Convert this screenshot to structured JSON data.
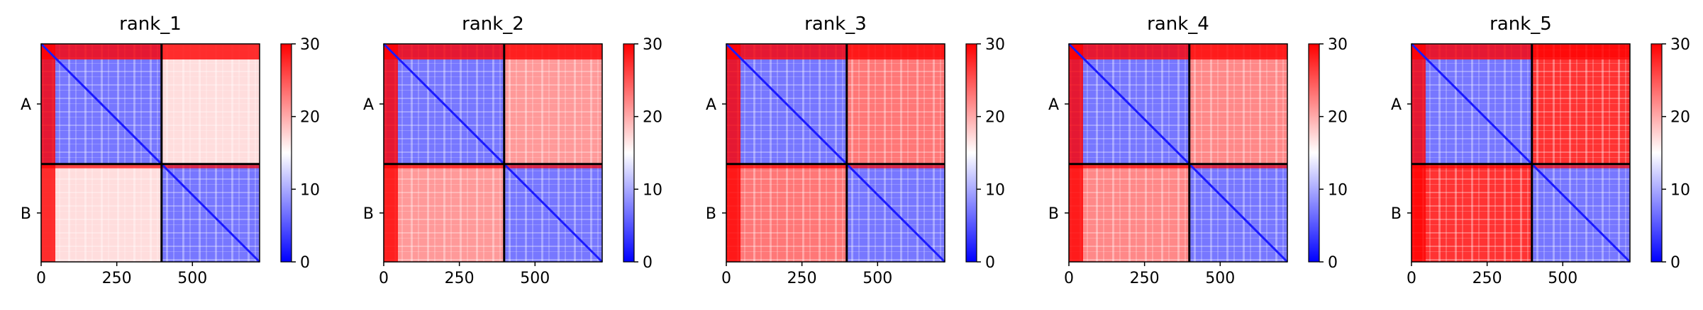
{
  "chart_data": {
    "type": "heatmap",
    "cmap": "bwr",
    "chains": [
      "A",
      "B"
    ],
    "chain_boundary": 398,
    "axis_range": [
      0,
      722
    ],
    "xticks": [
      0,
      250,
      500
    ],
    "colorbar": {
      "min": 0,
      "max": 30,
      "ticks": [
        0,
        10,
        20,
        30
      ]
    },
    "panels": [
      {
        "title": "rank_1",
        "intra_level": 7,
        "inter_level": 17,
        "ticks": [
          "0",
          "250",
          "500"
        ],
        "colorbar_ticks": [
          "0",
          "10",
          "20",
          "30"
        ]
      },
      {
        "title": "rank_2",
        "intra_level": 7,
        "inter_level": 21,
        "ticks": [
          "0",
          "250",
          "500"
        ],
        "colorbar_ticks": [
          "0",
          "10",
          "20",
          "30"
        ]
      },
      {
        "title": "rank_3",
        "intra_level": 7,
        "inter_level": 23,
        "ticks": [
          "0",
          "250",
          "500"
        ],
        "colorbar_ticks": [
          "0",
          "10",
          "20",
          "30"
        ]
      },
      {
        "title": "rank_4",
        "intra_level": 7,
        "inter_level": 22,
        "ticks": [
          "0",
          "250",
          "500"
        ],
        "colorbar_ticks": [
          "0",
          "10",
          "20",
          "30"
        ]
      },
      {
        "title": "rank_5",
        "intra_level": 7,
        "inter_level": 27,
        "ticks": [
          "0",
          "250",
          "500"
        ],
        "colorbar_ticks": [
          "0",
          "10",
          "20",
          "30"
        ]
      }
    ]
  }
}
